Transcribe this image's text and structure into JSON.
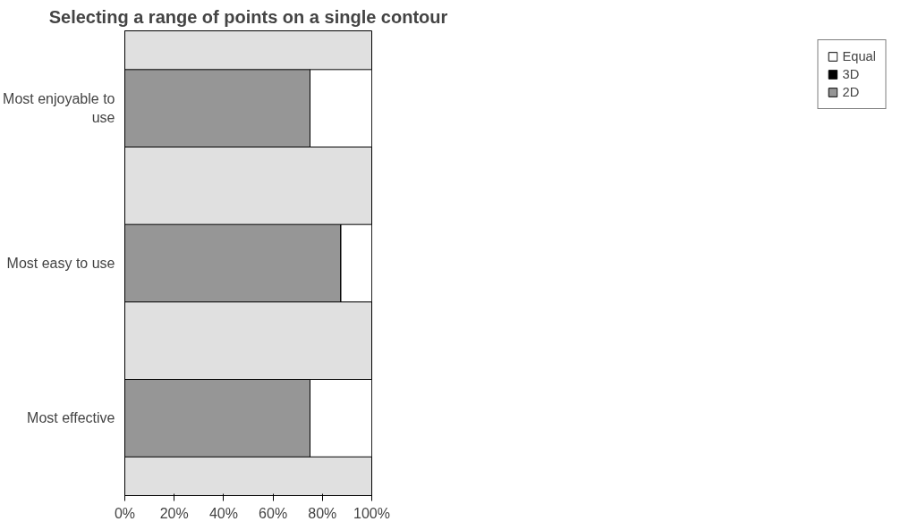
{
  "chart_data": {
    "type": "bar",
    "title": "Selecting a range of points on a single contour",
    "orientation": "horizontal",
    "stacked": true,
    "categories": [
      "Most enjoyable to use",
      "Most easy to use",
      "Most effective"
    ],
    "series": [
      {
        "name": "2D",
        "color": "#969696",
        "values": [
          75,
          87.5,
          75
        ]
      },
      {
        "name": "3D",
        "color": "#000000",
        "values": [
          0,
          0,
          0
        ]
      },
      {
        "name": "Equal",
        "color": "#ffffff",
        "values": [
          25,
          12.5,
          25
        ]
      }
    ],
    "xlim": [
      0,
      100
    ],
    "xticks": [
      {
        "value": 0,
        "label": "0%"
      },
      {
        "value": 20,
        "label": "20%"
      },
      {
        "value": 40,
        "label": "40%"
      },
      {
        "value": 60,
        "label": "60%"
      },
      {
        "value": 80,
        "label": "80%"
      },
      {
        "value": 100,
        "label": "100%"
      }
    ],
    "grid": false,
    "legend": "right"
  }
}
